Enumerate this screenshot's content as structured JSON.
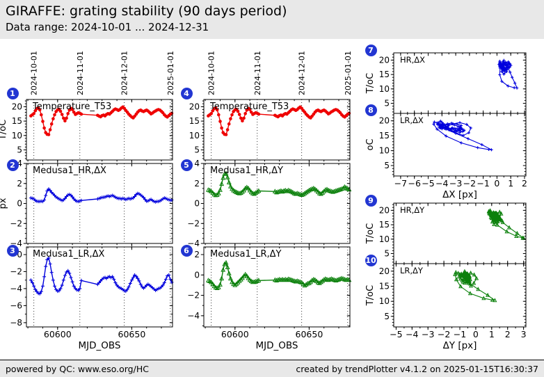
{
  "header": {
    "title": "GIRAFFE: grating stability (90 days period)",
    "subtitle": "Data range: 2024-10-01 ... 2024-12-31"
  },
  "footer": {
    "left": "powered by QC: www.eso.org/HC",
    "right": "created by trendPlotter v4.1.2 on 2025-01-15T16:30:37"
  },
  "colors": {
    "red": "#ee0000",
    "blue": "#0000dd",
    "green": "#0b800b",
    "badge": "#2236d2",
    "panel_bg": "#e8e8e8",
    "frame": "#000000"
  },
  "chart_data": {
    "type": "line",
    "xlabel_time": "MJD_OBS",
    "date_gridlines": {
      "mjd": [
        60584,
        60615,
        60645,
        60676
      ],
      "labels": [
        "2024-10-01",
        "2024-11-01",
        "2024-12-01",
        "2025-01-01"
      ]
    },
    "series": {
      "mjd": [
        60582,
        60583,
        60584,
        60585,
        60586,
        60587,
        60588,
        60589,
        60590,
        60591,
        60592,
        60593,
        60594,
        60595,
        60596,
        60597,
        60598,
        60599,
        60600,
        60601,
        60602,
        60603,
        60604,
        60605,
        60606,
        60607,
        60608,
        60609,
        60610,
        60611,
        60612,
        60613,
        60614,
        60615,
        60616,
        60617,
        60618,
        60619,
        60620,
        60621,
        60622,
        60623,
        60624,
        60625,
        60626,
        60627,
        60628,
        60629,
        60630,
        60631,
        60632,
        60633,
        60634,
        60635,
        60636,
        60637,
        60638,
        60639,
        60640,
        60641,
        60642,
        60643,
        60644,
        60645,
        60646,
        60647,
        60648,
        60649,
        60650,
        60651,
        60652,
        60653,
        60654,
        60655,
        60656,
        60657,
        60658,
        60659,
        60660,
        60661,
        60662,
        60663,
        60664,
        60665,
        60666,
        60667,
        60668,
        60669,
        60670,
        60671,
        60672,
        60673,
        60674,
        60675,
        60676,
        60677
      ],
      "t53": [
        16.8,
        17.2,
        17.6,
        18.6,
        19.3,
        19.6,
        18.9,
        17.2,
        14.9,
        12.6,
        11.0,
        10.4,
        10.3,
        12.0,
        14.0,
        15.8,
        17.2,
        18.3,
        18.9,
        19.1,
        18.4,
        17.3,
        16.0,
        15.1,
        16.0,
        17.6,
        18.8,
        19.4,
        19.0,
        18.1,
        17.3,
        17.6,
        17.9,
        17.7,
        17.4,
        null,
        null,
        null,
        null,
        null,
        null,
        null,
        null,
        null,
        null,
        17.0,
        16.7,
        16.5,
        16.9,
        17.1,
        16.8,
        17.3,
        17.6,
        17.4,
        17.9,
        18.4,
        18.9,
        19.2,
        19.0,
        18.7,
        19.0,
        19.5,
        19.9,
        19.4,
        18.7,
        18.1,
        17.4,
        16.9,
        16.4,
        16.1,
        16.7,
        17.4,
        18.1,
        18.6,
        18.8,
        18.5,
        18.3,
        18.6,
        18.8,
        18.5,
        18.0,
        17.5,
        17.8,
        18.2,
        18.5,
        18.8,
        19.0,
        18.8,
        18.4,
        17.9,
        17.2,
        16.7,
        16.4,
        16.9,
        17.4,
        17.7
      ],
      "hr_dx": [
        0.55,
        0.5,
        0.45,
        0.3,
        0.22,
        0.2,
        0.2,
        0.22,
        0.2,
        0.35,
        0.8,
        1.25,
        1.45,
        1.3,
        1.1,
        0.95,
        0.8,
        0.65,
        0.55,
        0.45,
        0.38,
        0.3,
        0.35,
        0.5,
        0.7,
        0.85,
        0.9,
        0.82,
        0.65,
        0.45,
        0.3,
        0.22,
        0.2,
        0.25,
        0.3,
        null,
        null,
        null,
        null,
        null,
        null,
        null,
        null,
        null,
        null,
        0.45,
        0.5,
        0.55,
        0.6,
        0.62,
        0.65,
        0.7,
        0.75,
        0.7,
        0.75,
        0.8,
        0.72,
        0.62,
        0.55,
        0.5,
        0.5,
        0.45,
        0.5,
        0.45,
        0.4,
        0.45,
        0.5,
        0.45,
        0.5,
        0.55,
        0.7,
        0.9,
        1.0,
        0.95,
        0.85,
        0.72,
        0.6,
        0.4,
        0.22,
        0.25,
        0.35,
        0.4,
        0.3,
        0.2,
        0.15,
        0.2,
        0.2,
        0.25,
        0.35,
        0.45,
        0.55,
        0.5,
        0.42,
        0.38,
        0.32,
        0.35
      ],
      "lr_dx": [
        -3.0,
        -3.3,
        -3.7,
        -4.1,
        -4.35,
        -4.55,
        -4.6,
        -4.35,
        -3.7,
        -2.6,
        -1.4,
        -0.6,
        -0.4,
        -1.1,
        -2.1,
        -3.0,
        -3.7,
        -4.1,
        -4.3,
        -4.25,
        -4.0,
        -3.6,
        -3.0,
        -2.45,
        -2.05,
        -1.9,
        -2.2,
        -2.7,
        -3.2,
        -3.7,
        -4.0,
        -4.15,
        -4.2,
        -4.0,
        -3.05,
        null,
        null,
        null,
        null,
        null,
        null,
        null,
        null,
        null,
        null,
        -3.5,
        -3.3,
        -3.1,
        -2.9,
        -2.75,
        -2.7,
        -2.8,
        -2.65,
        -2.6,
        -2.7,
        -2.6,
        -2.9,
        -3.3,
        -3.6,
        -3.8,
        -3.9,
        -4.0,
        -4.1,
        -4.25,
        -4.3,
        -4.1,
        -3.8,
        -3.4,
        -3.0,
        -2.7,
        -2.4,
        -2.55,
        -2.8,
        -3.1,
        -3.5,
        -3.8,
        -3.95,
        -3.8,
        -3.6,
        -3.5,
        -3.6,
        -3.75,
        -3.9,
        -4.05,
        -4.2,
        -4.1,
        -4.0,
        -3.95,
        -3.8,
        -3.6,
        -3.3,
        -2.9,
        -2.5,
        -2.4,
        -2.9,
        -3.25
      ],
      "hr_dy": [
        1.35,
        1.3,
        1.2,
        1.05,
        0.9,
        0.82,
        0.85,
        1.0,
        1.35,
        1.95,
        2.55,
        2.95,
        3.0,
        2.6,
        2.1,
        1.7,
        1.45,
        1.3,
        1.2,
        1.12,
        1.05,
        1.0,
        1.05,
        1.15,
        1.3,
        1.5,
        1.6,
        1.5,
        1.3,
        1.12,
        1.0,
        0.95,
        1.05,
        1.15,
        1.25,
        null,
        null,
        null,
        null,
        null,
        null,
        null,
        null,
        null,
        null,
        1.2,
        1.1,
        1.15,
        1.2,
        1.25,
        1.18,
        1.25,
        1.3,
        1.22,
        1.3,
        1.25,
        1.18,
        1.1,
        1.0,
        0.95,
        1.0,
        0.95,
        0.9,
        0.85,
        0.9,
        1.0,
        1.1,
        1.2,
        1.3,
        1.38,
        1.45,
        1.5,
        1.42,
        1.3,
        1.15,
        1.0,
        0.95,
        1.05,
        1.2,
        1.35,
        1.4,
        1.3,
        1.25,
        1.2,
        1.15,
        1.2,
        1.25,
        1.3,
        1.35,
        1.4,
        1.45,
        1.5,
        1.65,
        1.55,
        1.45,
        1.4
      ],
      "lr_dy": [
        -0.55,
        -0.62,
        -0.72,
        -0.9,
        -1.1,
        -1.25,
        -1.3,
        -1.22,
        -0.95,
        -0.35,
        0.5,
        1.05,
        1.2,
        0.75,
        0.15,
        -0.35,
        -0.7,
        -0.9,
        -1.0,
        -0.9,
        -0.75,
        -0.6,
        -0.45,
        -0.3,
        -0.12,
        0.05,
        -0.1,
        -0.32,
        -0.5,
        -0.62,
        -0.7,
        -0.7,
        -0.65,
        -0.6,
        -0.55,
        null,
        null,
        null,
        null,
        null,
        null,
        null,
        null,
        null,
        null,
        -0.5,
        -0.55,
        -0.5,
        -0.45,
        -0.5,
        -0.45,
        -0.5,
        -0.45,
        -0.5,
        -0.42,
        -0.45,
        -0.5,
        -0.55,
        -0.6,
        -0.65,
        -0.6,
        -0.65,
        -0.7,
        -0.75,
        -0.9,
        -1.05,
        -0.95,
        -0.85,
        -0.8,
        -0.7,
        -0.55,
        -0.45,
        -0.5,
        -0.62,
        -0.75,
        -0.8,
        -0.7,
        -0.6,
        -0.48,
        -0.4,
        -0.45,
        -0.5,
        -0.45,
        -0.4,
        -0.45,
        -0.5,
        -0.55,
        -0.5,
        -0.45,
        -0.4,
        -0.35,
        -0.4,
        -0.45,
        -0.5,
        -0.45,
        -0.5
      ]
    },
    "panels": [
      {
        "badge": "1",
        "name": "temperature-t53-left",
        "title": "Temperature_T53",
        "kind": "time",
        "xkey": "mjd",
        "ykey": "t53",
        "color": "red",
        "marker": "dot",
        "xlim": [
          60579,
          60677.5
        ],
        "ylim": [
          1.5,
          22.5
        ],
        "yticks": [
          5,
          10,
          15,
          20
        ],
        "yminor": 1,
        "xticks": [
          60600,
          60650
        ],
        "xminor": 10,
        "show_xtick_labels": false,
        "grid": [
          60584,
          60615,
          60645,
          60676
        ],
        "top_dates": true,
        "ylabel": "T/oC",
        "xlabel": ""
      },
      {
        "badge": "2",
        "name": "medusa1-hr-dx",
        "title": "Medusa1_HR,ΔX",
        "kind": "time",
        "xkey": "mjd",
        "ykey": "hr_dx",
        "color": "blue",
        "marker": "plus",
        "xlim": [
          60579,
          60677.5
        ],
        "ylim": [
          -4,
          4
        ],
        "yticks": [
          -4,
          -2,
          0,
          2,
          4
        ],
        "yminor": 0.5,
        "xticks": [
          60600,
          60650
        ],
        "xminor": 10,
        "show_xtick_labels": false,
        "grid": [
          60584,
          60615,
          60645,
          60676
        ],
        "top_dates": false,
        "ylabel": "px",
        "xlabel": ""
      },
      {
        "badge": "3",
        "name": "medusa1-lr-dx",
        "title": "Medusa1_LR,ΔX",
        "kind": "time",
        "xkey": "mjd",
        "ykey": "lr_dx",
        "color": "blue",
        "marker": "plus",
        "xlim": [
          60579,
          60677.5
        ],
        "ylim": [
          -8.5,
          0.9
        ],
        "yticks": [
          0,
          -2,
          -4,
          -6,
          -8
        ],
        "yminor": 1,
        "xticks": [
          60600,
          60650
        ],
        "xminor": 10,
        "show_xtick_labels": true,
        "grid": [
          60584,
          60615,
          60645,
          60676
        ],
        "top_dates": false,
        "ylabel": "",
        "xlabel": "MJD_OBS"
      },
      {
        "badge": "4",
        "name": "temperature-t53-mid",
        "title": "Temperature_T53",
        "kind": "time",
        "xkey": "mjd",
        "ykey": "t53",
        "color": "red",
        "marker": "dot",
        "xlim": [
          60579,
          60677.5
        ],
        "ylim": [
          1.5,
          22.5
        ],
        "yticks": [
          5,
          10,
          15,
          20
        ],
        "yminor": 1,
        "xticks": [
          60600,
          60650
        ],
        "xminor": 10,
        "show_xtick_labels": false,
        "grid": [
          60584,
          60615,
          60645,
          60676
        ],
        "top_dates": true,
        "ylabel": "",
        "xlabel": ""
      },
      {
        "badge": "5",
        "name": "medusa1-hr-dy",
        "title": "Medusa1_HR,ΔY",
        "kind": "time",
        "xkey": "mjd",
        "ykey": "hr_dy",
        "color": "green",
        "marker": "tri",
        "xlim": [
          60579,
          60677.5
        ],
        "ylim": [
          -4,
          4
        ],
        "yticks": [
          -4,
          -2,
          0,
          2,
          4
        ],
        "yminor": 0.5,
        "xticks": [
          60600,
          60650
        ],
        "xminor": 10,
        "show_xtick_labels": false,
        "grid": [
          60584,
          60615,
          60645,
          60676
        ],
        "top_dates": false,
        "ylabel": "",
        "xlabel": ""
      },
      {
        "badge": "6",
        "name": "medusa1-lr-dy",
        "title": "Medusa1_LR,ΔY",
        "kind": "time",
        "xkey": "mjd",
        "ykey": "lr_dy",
        "color": "green",
        "marker": "tri",
        "xlim": [
          60579,
          60677.5
        ],
        "ylim": [
          -5.1,
          2.75
        ],
        "yticks": [
          2,
          0,
          -2,
          -4
        ],
        "yminor": 1,
        "xticks": [
          60600,
          60650
        ],
        "xminor": 10,
        "show_xtick_labels": true,
        "grid": [
          60584,
          60615,
          60645,
          60676
        ],
        "top_dates": false,
        "ylabel": "",
        "xlabel": "MJD_OBS"
      },
      {
        "badge": "7",
        "name": "scatter-hr-dx",
        "title": "HR,ΔX",
        "kind": "scatter",
        "xkey": "hr_dx",
        "ykey": "t53",
        "color": "blue",
        "marker": "plus",
        "xlim": [
          -7.5,
          2.1
        ],
        "ylim": [
          1.5,
          22.5
        ],
        "yticks": [
          5,
          10,
          15,
          20
        ],
        "yminor": 1,
        "xticks": [
          -7,
          -6,
          -5,
          -4,
          -3,
          -2,
          -1,
          0,
          1,
          2
        ],
        "xminor": 0.5,
        "show_xtick_labels": false,
        "grid": null,
        "top_dates": false,
        "ylabel": "T/oC",
        "xlabel": "",
        "bottom_in": true
      },
      {
        "badge": "8",
        "name": "scatter-lr-dx",
        "title": "LR,ΔX",
        "kind": "scatter",
        "xkey": "lr_dx",
        "ykey": "t53",
        "color": "blue",
        "marker": "plus",
        "xlim": [
          -7.5,
          2.1
        ],
        "ylim": [
          1.5,
          22.5
        ],
        "yticks": [
          5,
          10,
          15,
          20
        ],
        "yminor": 1,
        "xticks": [
          -7,
          -6,
          -5,
          -4,
          -3,
          -2,
          -1,
          0,
          1,
          2
        ],
        "xminor": 0.5,
        "show_xtick_labels": true,
        "grid": null,
        "top_dates": false,
        "ylabel": "oC",
        "xlabel": "ΔX [px]"
      },
      {
        "badge": "9",
        "name": "scatter-hr-dy",
        "title": "HR,ΔY",
        "kind": "scatter",
        "xkey": "hr_dy",
        "ykey": "t53",
        "color": "green",
        "marker": "tri",
        "xlim": [
          -5.15,
          3.15
        ],
        "ylim": [
          1.5,
          22.5
        ],
        "yticks": [
          5,
          10,
          15,
          20
        ],
        "yminor": 1,
        "xticks": [
          -5,
          -4,
          -3,
          -2,
          -1,
          0,
          1,
          2,
          3
        ],
        "xminor": 0.5,
        "show_xtick_labels": false,
        "grid": null,
        "top_dates": false,
        "ylabel": "T/oC",
        "xlabel": "",
        "bottom_in": true
      },
      {
        "badge": "10",
        "name": "scatter-lr-dy",
        "title": "LR,ΔY",
        "kind": "scatter",
        "xkey": "lr_dy",
        "ykey": "t53",
        "color": "green",
        "marker": "tri",
        "xlim": [
          -5.15,
          3.15
        ],
        "ylim": [
          1.5,
          22.5
        ],
        "yticks": [
          5,
          10,
          15,
          20
        ],
        "yminor": 1,
        "xticks": [
          -5,
          -4,
          -3,
          -2,
          -1,
          0,
          1,
          2,
          3
        ],
        "xminor": 0.5,
        "show_xtick_labels": true,
        "grid": null,
        "top_dates": false,
        "ylabel": "T/oC",
        "xlabel": "ΔY [px]"
      }
    ]
  }
}
